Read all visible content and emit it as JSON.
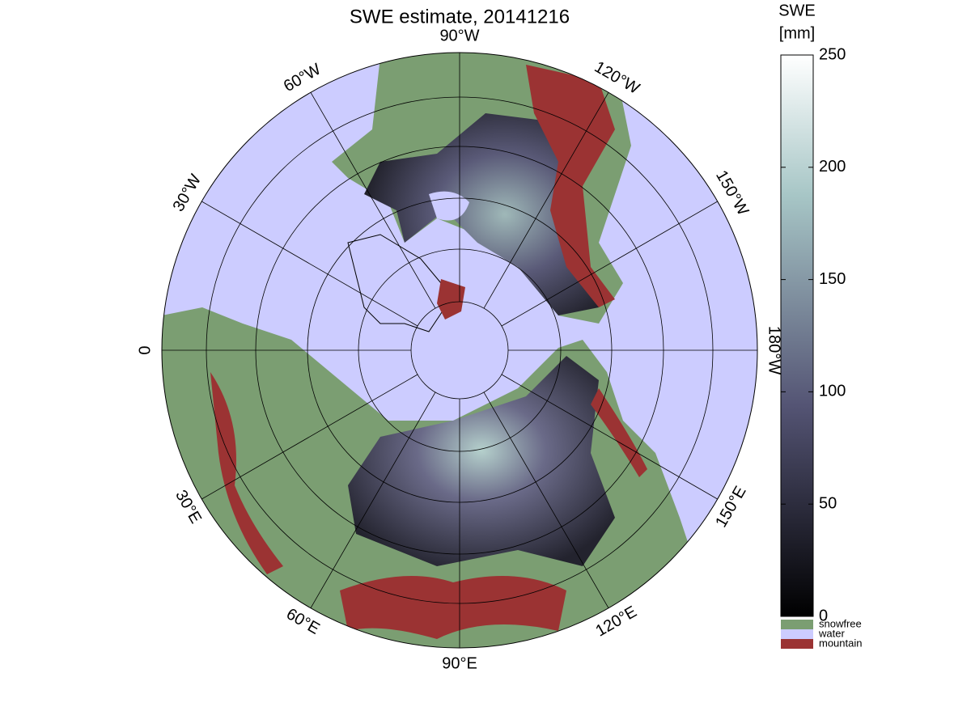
{
  "map": {
    "title": "SWE estimate, 20141216",
    "longitude_labels": [
      "90°W",
      "120°W",
      "150°W",
      "180°W",
      "150°E",
      "120°E",
      "90°E",
      "60°E",
      "30°E",
      "0",
      "30°W",
      "60°W"
    ],
    "colorbar": {
      "title": [
        "SWE",
        "[mm]"
      ],
      "range": [
        0,
        250
      ],
      "ticks": [
        0,
        50,
        100,
        150,
        200,
        250
      ]
    },
    "legend": [
      {
        "label": "snowfree",
        "color": "#7b9e72"
      },
      {
        "label": "water",
        "color": "#ccccff"
      },
      {
        "label": "mountain",
        "color": "#9b3333"
      }
    ]
  }
}
